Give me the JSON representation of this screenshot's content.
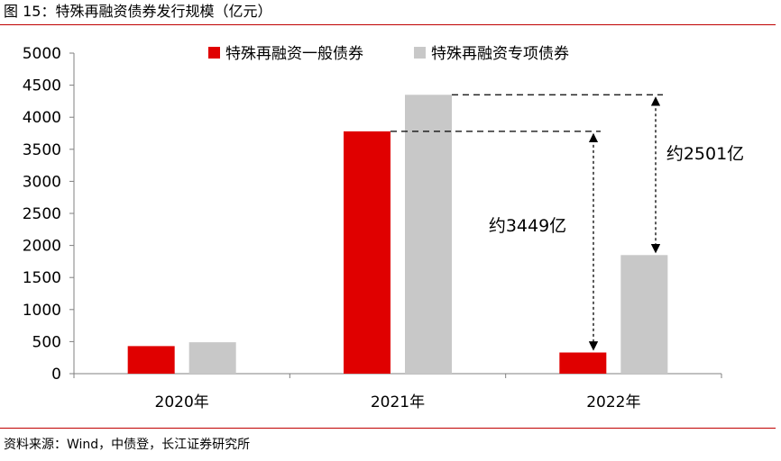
{
  "figure_title": "图 15：特殊再融资债券发行规模（亿元）",
  "source_note": "资料来源：Wind，中债登，长江证券研究所",
  "colors": {
    "accent": "#c00000"
  },
  "chart_data": {
    "type": "bar",
    "title": "",
    "xlabel": "",
    "ylabel": "",
    "categories": [
      "2020年",
      "2021年",
      "2022年"
    ],
    "ylim": [
      0,
      5000
    ],
    "yticks": [
      0,
      500,
      1000,
      1500,
      2000,
      2500,
      3000,
      3500,
      4000,
      4500,
      5000
    ],
    "grid": false,
    "legend_position": "top-center",
    "series": [
      {
        "name": "特殊再融资一般债券",
        "color": "#e00000",
        "values": [
          430,
          3780,
          330
        ]
      },
      {
        "name": "特殊再融资专项债券",
        "color": "#c8c8c8",
        "values": [
          490,
          4350,
          1850
        ]
      }
    ],
    "annotations": [
      {
        "text": "约3449亿",
        "series": 0,
        "from_category": 1,
        "to_category": 2
      },
      {
        "text": "约2501亿",
        "series": 1,
        "from_category": 1,
        "to_category": 2
      }
    ]
  }
}
